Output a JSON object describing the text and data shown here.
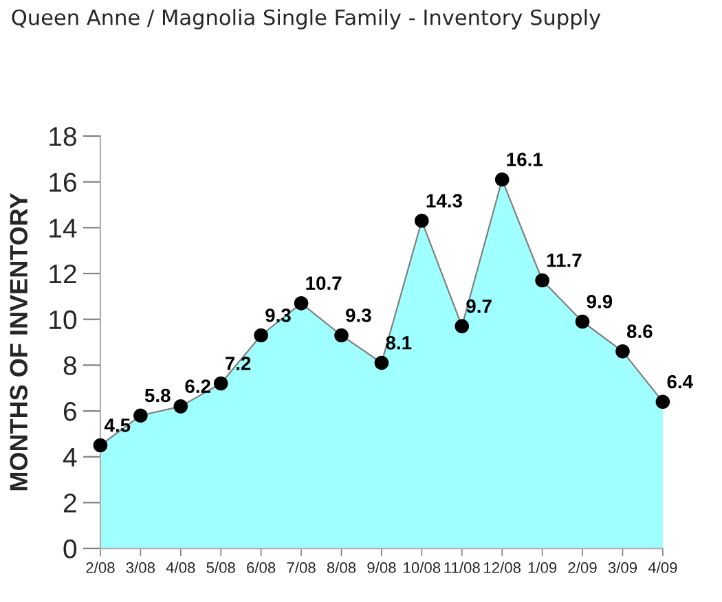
{
  "chart_data": {
    "type": "area",
    "title": "Queen Anne / Magnolia Single Family - Inventory Supply",
    "ylabel": "MONTHS OF INVENTORY",
    "categories": [
      "2/08",
      "3/08",
      "4/08",
      "5/08",
      "6/08",
      "7/08",
      "8/08",
      "9/08",
      "10/08",
      "11/08",
      "12/08",
      "1/09",
      "2/09",
      "3/09",
      "4/09"
    ],
    "series": [
      {
        "color": "#a0ffff",
        "values": [
          4.5,
          5.8,
          6.2,
          7.2,
          9.3,
          10.7,
          9.3,
          8.1,
          14.3,
          9.7,
          16.1,
          11.7,
          9.9,
          8.6,
          6.4
        ]
      }
    ],
    "ylim": [
      0,
      18
    ],
    "yticks": [
      0,
      2,
      4,
      6,
      8,
      10,
      12,
      14,
      16,
      18
    ],
    "marker": "circle",
    "data_labels": true
  }
}
